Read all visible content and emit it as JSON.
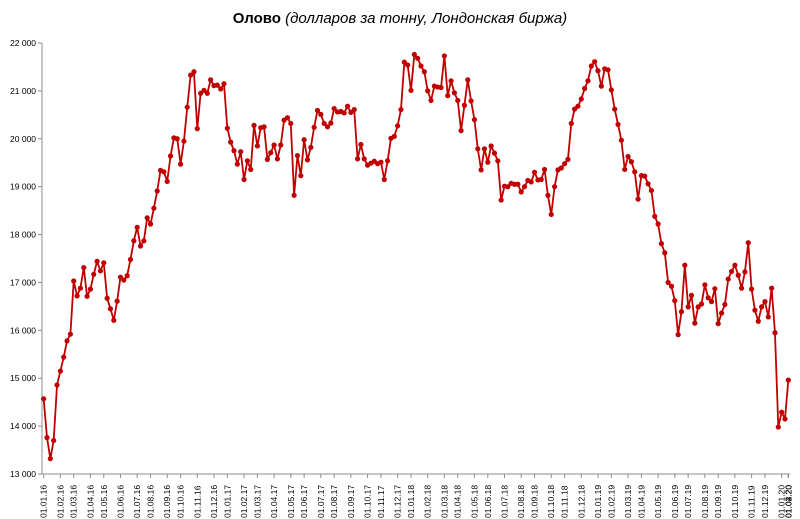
{
  "chart_data": {
    "type": "line",
    "title": "Олово",
    "subtitle": "(долларов за тонну, Лондонская биржа)",
    "xlabel": "",
    "ylabel": "",
    "ylim": [
      13000,
      22000
    ],
    "yticks": [
      13000,
      14000,
      15000,
      16000,
      17000,
      18000,
      19000,
      20000,
      21000,
      22000
    ],
    "ytick_labels": [
      "13 000",
      "14 000",
      "15 000",
      "16 000",
      "17 000",
      "18 000",
      "19 000",
      "20 000",
      "21 000",
      "22 000"
    ],
    "xtick_labels": [
      "01.01.16",
      "01.02.16",
      "01.03.16",
      "01.04.16",
      "01.05.16",
      "01.06.16",
      "01.07.16",
      "01.08.16",
      "01.09.16",
      "01.10.16",
      "01.11.16",
      "01.12.16",
      "01.01.17",
      "01.02.17",
      "01.03.17",
      "01.04.17",
      "01.05.17",
      "01.06.17",
      "01.07.17",
      "01.08.17",
      "01.09.17",
      "01.10.17",
      "01.11.17",
      "01.12.17",
      "01.01.18",
      "01.02.18",
      "01.03.18",
      "01.04.18",
      "01.05.18",
      "01.06.18",
      "01.07.18",
      "01.08.18",
      "01.09.18",
      "01.10.18",
      "01.11.18",
      "01.12.18",
      "01.01.19",
      "01.02.19",
      "01.03.19",
      "01.04.19",
      "01.05.19",
      "01.06.19",
      "01.07.19",
      "01.08.19",
      "01.09.19",
      "01.10.19",
      "01.11.19",
      "01.12.19",
      "01.01.20",
      "01.02.20",
      "01.03.20",
      "01.04.20"
    ],
    "grid": false,
    "line_color": "#c00000",
    "series": [
      {
        "values": [
          14570,
          13760,
          13320,
          13700,
          14860,
          15150,
          15440,
          15780,
          15920,
          17030,
          16720,
          16880,
          17310,
          16710,
          16860,
          17170,
          17440,
          17240,
          17410,
          16670,
          16450,
          16210,
          16610,
          17110,
          17050,
          17140,
          17480,
          17870,
          18150,
          17760,
          17870,
          18350,
          18220,
          18550,
          18910,
          19340,
          19310,
          19110,
          19640,
          20020,
          20000,
          19470,
          19950,
          20660,
          21330,
          21400,
          20210,
          20950,
          21010,
          20950,
          21230,
          21110,
          21120,
          21040,
          21150,
          20220,
          19930,
          19750,
          19470,
          19730,
          19150,
          19540,
          19360,
          20280,
          19850,
          20230,
          20250,
          19570,
          19710,
          19870,
          19580,
          19870,
          20390,
          20440,
          20320,
          18820,
          19650,
          19230,
          19980,
          19560,
          19820,
          20240,
          20590,
          20510,
          20320,
          20250,
          20330,
          20630,
          20560,
          20570,
          20540,
          20680,
          20550,
          20610,
          19580,
          19880,
          19580,
          19450,
          19490,
          19530,
          19480,
          19510,
          19150,
          19540,
          20010,
          20050,
          20270,
          20610,
          21600,
          21540,
          21010,
          21760,
          21680,
          21520,
          21400,
          21000,
          20800,
          21100,
          21080,
          21070,
          21730,
          20900,
          21210,
          20960,
          20800,
          20170,
          20700,
          21230,
          20790,
          20400,
          19790,
          19350,
          19790,
          19510,
          19850,
          19700,
          19540,
          18720,
          19010,
          19000,
          19070,
          19050,
          19050,
          18890,
          19000,
          19130,
          19100,
          19300,
          19140,
          19150,
          19360,
          18820,
          18420,
          19000,
          19350,
          19390,
          19480,
          19570,
          20320,
          20620,
          20680,
          20830,
          21050,
          21210,
          21520,
          21610,
          21420,
          21100,
          21460,
          21440,
          21020,
          20620,
          20300,
          19970,
          19360,
          19630,
          19520,
          19310,
          18740,
          19230,
          19220,
          19060,
          18920,
          18380,
          18220,
          17810,
          17620,
          17000,
          16920,
          16620,
          15910,
          16390,
          17360,
          16490,
          16730,
          16150,
          16490,
          16550,
          16950,
          16680,
          16600,
          16870,
          16140,
          16360,
          16540,
          17070,
          17230,
          17360,
          17150,
          16880,
          17220,
          17830,
          16860,
          16420,
          16190,
          16490,
          16600,
          16280,
          16880,
          15950,
          13980,
          14290,
          14150,
          14960
        ]
      }
    ]
  }
}
